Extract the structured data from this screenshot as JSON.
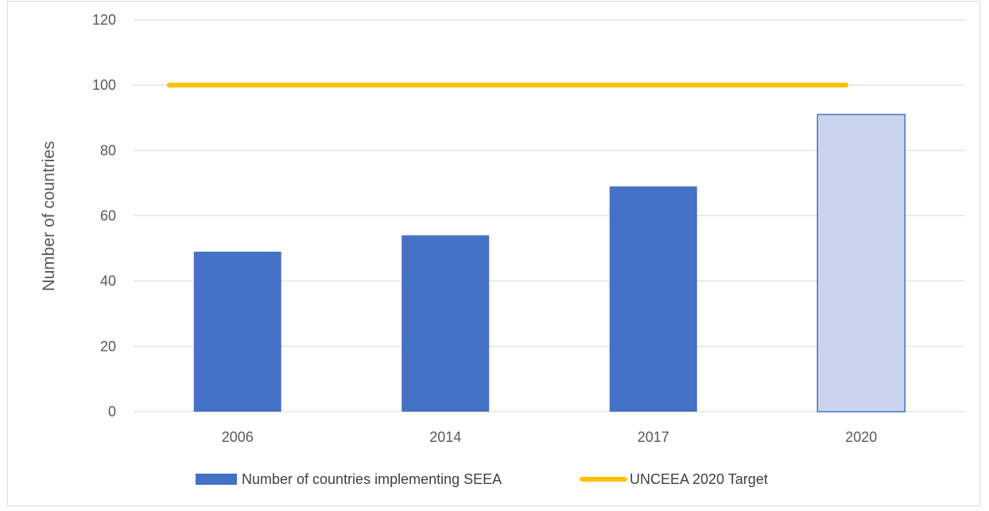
{
  "chart_data": {
    "type": "bar",
    "categories": [
      "2006",
      "2014",
      "2017",
      "2020"
    ],
    "series": [
      {
        "name": "Number of countries implementing SEEA",
        "values": [
          49,
          54,
          69,
          91
        ],
        "color": "#4472c4",
        "projected_color": "#c9d5ee",
        "projected_index": 3
      }
    ],
    "target": {
      "name": "UNCEEA 2020 Target",
      "value": 100,
      "color": "#ffc000"
    },
    "title": "",
    "xlabel": "",
    "ylabel": "Number of countries",
    "ylim": [
      0,
      120
    ],
    "yticks": [
      0,
      20,
      40,
      60,
      80,
      100,
      120
    ],
    "grid": true,
    "legend_position": "bottom"
  }
}
